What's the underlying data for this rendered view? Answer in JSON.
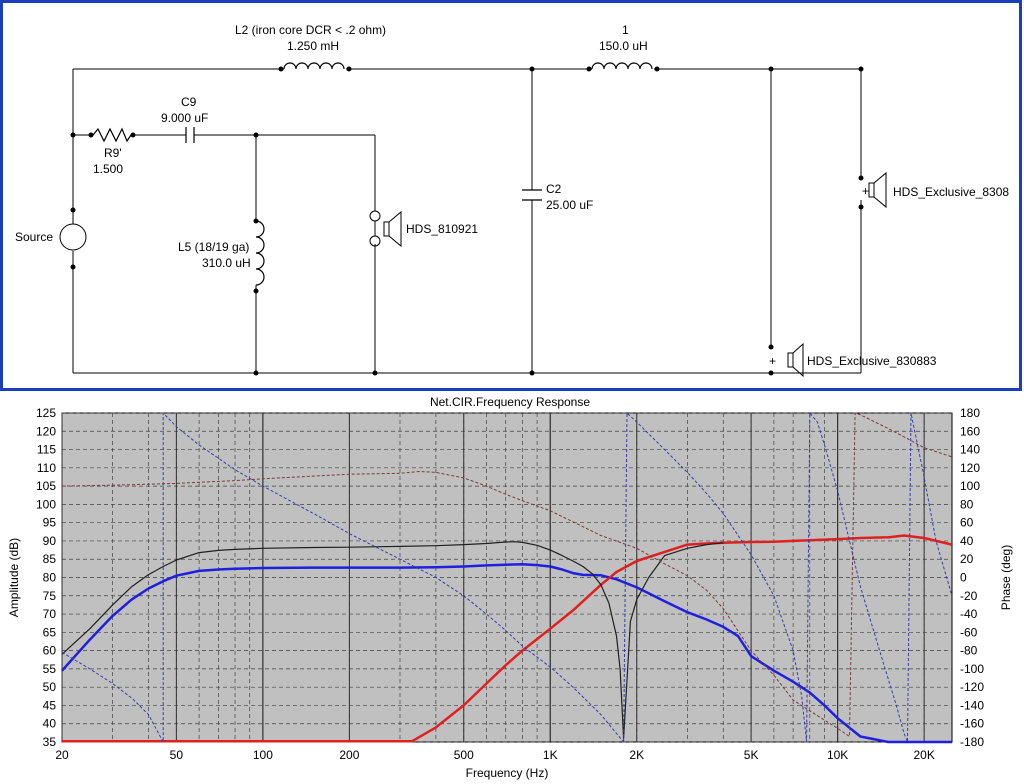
{
  "schematic": {
    "source_label": "Source",
    "r9": {
      "name": "R9'",
      "value": "1.500"
    },
    "c9": {
      "name": "C9",
      "value": "9.000 uF"
    },
    "l2": {
      "name": "L2 (iron core DCR < .2 ohm)",
      "value": "1.250 mH"
    },
    "l5": {
      "name": "L5 (18/19 ga)",
      "value": "310.0 uH"
    },
    "woofer": {
      "name": "HDS_810921"
    },
    "c2": {
      "name": "C2",
      "value": "25.00 uF"
    },
    "l1": {
      "name": "1",
      "value": "150.0 uH"
    },
    "tweeter_top": {
      "name": "HDS_Exclusive_8308",
      "polarity": "+"
    },
    "tweeter_bottom": {
      "name": "HDS_Exclusive_830883",
      "polarity": "+"
    }
  },
  "chart_data": {
    "type": "line",
    "title": "Net.CIR.Frequency Response",
    "xlabel": "Frequency (Hz)",
    "ylabel": "Amplitude (dB)",
    "y2label": "Phase (deg)",
    "xscale": "log",
    "xlim": [
      20,
      25000
    ],
    "ylim": [
      35,
      125
    ],
    "y2lim": [
      -180,
      180
    ],
    "grid": true,
    "background": "#c0c0c0",
    "xticks": [
      {
        "v": 20,
        "t": "20"
      },
      {
        "v": 50,
        "t": "50"
      },
      {
        "v": 100,
        "t": "100"
      },
      {
        "v": 200,
        "t": "200"
      },
      {
        "v": 500,
        "t": "500"
      },
      {
        "v": 1000,
        "t": "1K"
      },
      {
        "v": 2000,
        "t": "2K"
      },
      {
        "v": 5000,
        "t": "5K"
      },
      {
        "v": 10000,
        "t": "10K"
      },
      {
        "v": 20000,
        "t": "20K"
      }
    ],
    "yticks": [
      35,
      40,
      45,
      50,
      55,
      60,
      65,
      70,
      75,
      80,
      85,
      90,
      95,
      100,
      105,
      110,
      115,
      120,
      125
    ],
    "y2ticks": [
      -180,
      -160,
      -140,
      -120,
      -100,
      -80,
      -60,
      -40,
      -20,
      0,
      20,
      40,
      60,
      80,
      100,
      120,
      140,
      160,
      180
    ],
    "series": [
      {
        "color": "#1f1fe0",
        "width": 2.5,
        "axis": "left",
        "x": [
          20,
          25,
          30,
          35,
          40,
          45,
          50,
          60,
          70,
          80,
          100,
          150,
          200,
          300,
          400,
          500,
          600,
          700,
          800,
          900,
          1000,
          1100,
          1200,
          1300,
          1500,
          1700,
          2000,
          2500,
          3000,
          3500,
          4000,
          4500,
          5000,
          6000,
          7000,
          8000,
          9000,
          10000,
          12000,
          15000,
          20000,
          25000
        ],
        "y": [
          54.5,
          63,
          69.5,
          74,
          77,
          79,
          80.5,
          81.8,
          82.2,
          82.4,
          82.6,
          82.7,
          82.7,
          82.7,
          82.8,
          83,
          83.3,
          83.5,
          83.6,
          83.4,
          83,
          82.2,
          81.2,
          80.7,
          80.6,
          79.5,
          77.3,
          73.5,
          70.5,
          68.5,
          66.5,
          64,
          58.5,
          54.5,
          51.5,
          48.5,
          45,
          41.5,
          36.5,
          35,
          35,
          35
        ]
      },
      {
        "color": "#e02020",
        "width": 2.5,
        "axis": "left",
        "x": [
          20,
          100,
          200,
          330,
          400,
          500,
          600,
          700,
          800,
          1000,
          1200,
          1500,
          1700,
          2000,
          2500,
          3000,
          3500,
          4000,
          5000,
          6000,
          7000,
          8000,
          10000,
          12000,
          15000,
          17000,
          20000,
          25000
        ],
        "y": [
          35.2,
          35.2,
          35.2,
          35.2,
          39,
          45,
          51,
          56,
          60,
          66,
          71,
          78,
          81.5,
          84.5,
          87,
          89,
          89.3,
          89.5,
          89.7,
          89.8,
          90,
          90.2,
          90.5,
          90.8,
          91,
          91.5,
          90.8,
          89
        ]
      },
      {
        "color": "#202020",
        "width": 1.2,
        "axis": "left",
        "x": [
          20,
          25,
          30,
          35,
          40,
          45,
          50,
          60,
          70,
          80,
          100,
          150,
          200,
          300,
          400,
          500,
          600,
          700,
          750,
          800,
          900,
          1000,
          1100,
          1200,
          1300,
          1400,
          1500,
          1600,
          1700,
          1750,
          1800,
          1850,
          1900,
          2000,
          2200,
          2500,
          3000,
          3500,
          4000
        ],
        "y": [
          59,
          66,
          72.5,
          77.5,
          80.8,
          83,
          84.8,
          86.8,
          87.4,
          87.7,
          88,
          88.2,
          88.3,
          88.5,
          88.7,
          89,
          89.3,
          89.7,
          89.8,
          89.6,
          88.8,
          87.5,
          86,
          84.5,
          83,
          81,
          78,
          73,
          64,
          55,
          36,
          52,
          68,
          74,
          80,
          86,
          88,
          89,
          89.5
        ]
      },
      {
        "color": "#7a3a3a",
        "width": 1,
        "dash": "3,2",
        "axis": "right",
        "x": [
          20,
          30,
          50,
          80,
          100,
          150,
          200,
          300,
          350,
          400,
          500,
          600,
          700,
          800,
          1000,
          1200,
          1500,
          2000,
          2500,
          3000,
          3500,
          4000,
          5000,
          6000,
          7000,
          8000,
          10000,
          11000,
          11500,
          12000,
          15000,
          17000,
          20000,
          25000
        ],
        "y": [
          100,
          101,
          103,
          106,
          108,
          111,
          113,
          114,
          116,
          115,
          109,
          100,
          91,
          84,
          73,
          61,
          46,
          32,
          15,
          2,
          -14,
          -34,
          -80,
          -107,
          -134,
          -146,
          -165,
          -174,
          180,
          178,
          163,
          154,
          142,
          132
        ]
      },
      {
        "color": "#3a3ab0",
        "width": 1,
        "dash": "3,2",
        "axis": "right",
        "x": [
          20,
          25,
          30,
          35,
          40,
          45,
          45.01,
          50,
          60,
          80,
          100,
          150,
          200,
          300,
          400,
          500,
          600,
          700,
          800,
          1000,
          1200,
          1500,
          1800
        ],
        "y": [
          -82,
          -100,
          -116,
          -132,
          -150,
          -180,
          180,
          165,
          145,
          118,
          100,
          70,
          48,
          20,
          0,
          -20,
          -40,
          -58,
          -75,
          -98,
          -120,
          -150,
          -180
        ]
      },
      {
        "color": "#3a3ab0",
        "width": 1,
        "dash": "3,2",
        "axis": "right",
        "x": [
          1800,
          1850,
          2000,
          2500,
          3000,
          3500,
          4000,
          5000,
          6000,
          7000,
          7500,
          7800,
          8000,
          8500,
          9000,
          10000,
          11000,
          12000,
          14000,
          16000,
          17000,
          17500,
          18000,
          20000,
          22000,
          25000
        ],
        "y": [
          -180,
          180,
          170,
          140,
          115,
          92,
          70,
          25,
          -20,
          -80,
          -130,
          -180,
          180,
          170,
          145,
          95,
          40,
          -10,
          -80,
          -140,
          -170,
          -180,
          180,
          110,
          40,
          -20
        ]
      }
    ]
  }
}
